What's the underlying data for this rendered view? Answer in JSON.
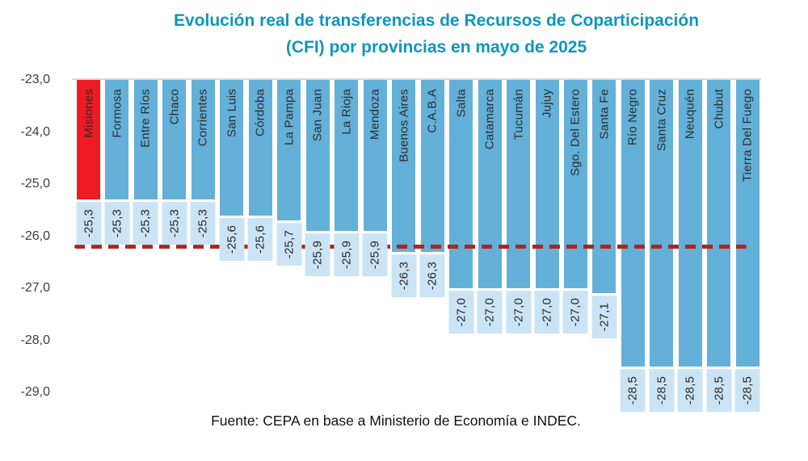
{
  "title": {
    "line1": "Evolución real de transferencias de Recursos de Coparticipación",
    "line2": "(CFI) por provincias en mayo de 2025"
  },
  "source": "Fuente: CEPA en base a Ministerio de Economía e INDEC.",
  "colors": {
    "bar": "#63b0d8",
    "highlight_bar": "#ee1b23",
    "value_box": "#cbe4f5",
    "reference_line": "#b3231b",
    "title_text": "#1095be",
    "axis_text": "#3c3c3c",
    "axis_line": "#d9d9d9"
  },
  "chart_data": {
    "type": "bar",
    "orientation": "vertical",
    "title": "Evolución real de transferencias de Recursos de Coparticipación (CFI) por provincias en mayo de 2025",
    "xlabel": "",
    "ylabel": "",
    "ylim": [
      -29.0,
      -23.0
    ],
    "ytick_labels": [
      "-23,0",
      "-24,0",
      "-25,0",
      "-26,0",
      "-27,0",
      "-28,0",
      "-29,0"
    ],
    "grid": false,
    "legend": false,
    "highlight_category": "Misiones",
    "reference_line_value": -26.2,
    "categories": [
      "Misiones",
      "Formosa",
      "Entre Ríos",
      "Chaco",
      "Corrientes",
      "San Luis",
      "Córdoba",
      "La Pampa",
      "San Juan",
      "La Rioja",
      "Mendoza",
      "Buenos Aires",
      "C.A.B.A",
      "Salta",
      "Catamarca",
      "Tucumán",
      "Jujuy",
      "Sgo. Del Estero",
      "Santa Fe",
      "Río Negro",
      "Santa Cruz",
      "Neuquén",
      "Chubut",
      "Tierra Del Fuego"
    ],
    "values": [
      -25.3,
      -25.3,
      -25.3,
      -25.3,
      -25.3,
      -25.6,
      -25.6,
      -25.7,
      -25.9,
      -25.9,
      -25.9,
      -26.3,
      -26.3,
      -27.0,
      -27.0,
      -27.0,
      -27.0,
      -27.0,
      -27.1,
      -28.5,
      -28.5,
      -28.5,
      -28.5,
      -28.5
    ],
    "value_labels": [
      "-25,3",
      "-25,3",
      "-25,3",
      "-25,3",
      "-25,3",
      "-25,6",
      "-25,6",
      "-25,7",
      "-25,9",
      "-25,9",
      "-25,9",
      "-26,3",
      "-26,3",
      "-27,0",
      "-27,0",
      "-27,0",
      "-27,0",
      "-27,0",
      "-27,1",
      "-28,5",
      "-28,5",
      "-28,5",
      "-28,5",
      "-28,5"
    ]
  }
}
